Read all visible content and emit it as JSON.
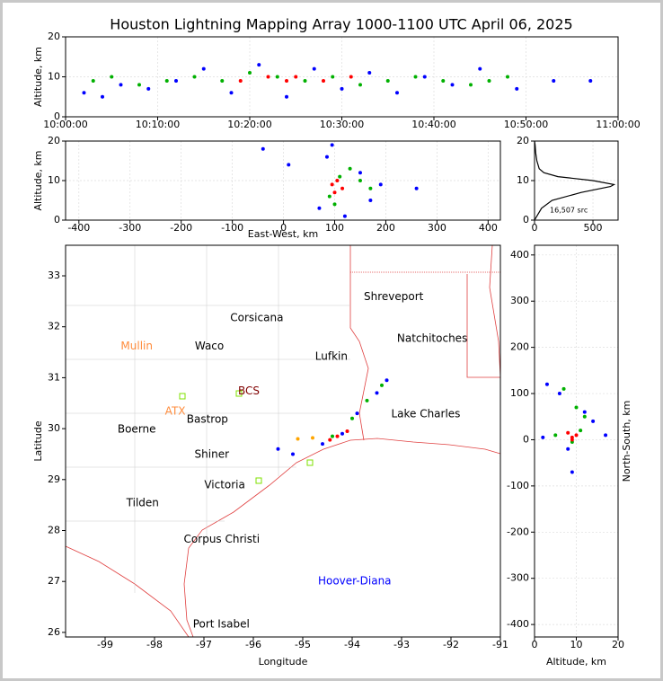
{
  "chart_data": [
    {
      "type": "scatter",
      "title": "Houston Lightning Mapping Array 1000-1100 UTC April 06, 2025",
      "y_label": "Altitude, km",
      "xlim": [
        0,
        60
      ],
      "xticks": [
        {
          "value": 0,
          "label": "10:00:00"
        },
        {
          "value": 10,
          "label": "10:10:00"
        },
        {
          "value": 20,
          "label": "10:20:00"
        },
        {
          "value": 30,
          "label": "10:30:00"
        },
        {
          "value": 40,
          "label": "10:40:00"
        },
        {
          "value": 50,
          "label": "10:50:00"
        },
        {
          "value": 60,
          "label": "11:00:00"
        }
      ],
      "ylim": [
        0,
        20
      ],
      "yticks": [
        0,
        10,
        20
      ],
      "grid": true,
      "groups": [
        {
          "color": "#0000ff",
          "x": [
            2,
            4,
            6,
            9,
            12,
            15,
            18,
            21,
            24,
            27,
            30,
            33,
            36,
            39,
            42,
            45,
            49,
            53,
            57
          ],
          "y": [
            6,
            5,
            8,
            7,
            9,
            12,
            6,
            13,
            5,
            12,
            7,
            11,
            6,
            10,
            8,
            12,
            7,
            9,
            9
          ]
        },
        {
          "color": "#00b000",
          "x": [
            3,
            5,
            8,
            11,
            14,
            17,
            20,
            23,
            26,
            29,
            32,
            35,
            38,
            41,
            44,
            46,
            48
          ],
          "y": [
            9,
            10,
            8,
            9,
            10,
            9,
            11,
            10,
            9,
            10,
            8,
            9,
            10,
            9,
            8,
            9,
            10
          ]
        },
        {
          "color": "#ff0000",
          "x": [
            19,
            22,
            24,
            25,
            28,
            31
          ],
          "y": [
            9,
            10,
            9,
            10,
            9,
            10
          ]
        }
      ]
    },
    {
      "type": "scatter",
      "x_label": "East-West, km",
      "y_label": "Altitude, km",
      "xlim": [
        -426,
        424
      ],
      "xticks": [
        -400,
        -300,
        -200,
        -100,
        0,
        100,
        200,
        300,
        400
      ],
      "ylim": [
        0,
        20
      ],
      "yticks": [
        0,
        10,
        20
      ],
      "grid": true,
      "groups": [
        {
          "color": "#0000ff",
          "x": [
            -40,
            10,
            70,
            85,
            150,
            190,
            170,
            120,
            95,
            260
          ],
          "y": [
            18,
            14,
            3,
            16,
            12,
            9,
            5,
            1,
            19,
            8
          ]
        },
        {
          "color": "#00b000",
          "x": [
            90,
            110,
            130,
            150,
            170,
            100
          ],
          "y": [
            6,
            11,
            13,
            10,
            8,
            4
          ]
        },
        {
          "color": "#ff0000",
          "x": [
            95,
            105,
            115,
            100
          ],
          "y": [
            9,
            10,
            8,
            7
          ]
        }
      ]
    },
    {
      "type": "line",
      "annotation": "16,507 src",
      "xlim": [
        0,
        715
      ],
      "xticks": [
        0,
        500
      ],
      "ylim": [
        0,
        20
      ],
      "yticks": [
        0,
        10,
        20
      ],
      "grid": true,
      "color": "#000000",
      "x": [
        0,
        20,
        60,
        150,
        400,
        650,
        680,
        500,
        200,
        80,
        40,
        20,
        10,
        5,
        0
      ],
      "values": [
        0,
        1,
        3,
        5,
        7,
        8.5,
        9,
        10,
        11,
        12,
        13,
        15,
        17,
        19,
        20
      ]
    },
    {
      "type": "map",
      "x_label": "Longitude",
      "y_label": "Latitude",
      "xlim": [
        -99.8,
        -91
      ],
      "xticks": [
        -99,
        -98,
        -97,
        -96,
        -95,
        -94,
        -93,
        -92,
        -91
      ],
      "ylim": [
        25.91,
        33.6
      ],
      "yticks": [
        26,
        27,
        28,
        29,
        30,
        31,
        32,
        33
      ],
      "cities": [
        {
          "name": "Shreveport",
          "lon": -93.16,
          "lat": 32.59,
          "color": "#000000"
        },
        {
          "name": "Corsicana",
          "lon": -95.93,
          "lat": 32.17,
          "color": "#000000"
        },
        {
          "name": "Natchitoches",
          "lon": -92.38,
          "lat": 31.77,
          "color": "#000000"
        },
        {
          "name": "Mullin",
          "lon": -98.36,
          "lat": 31.62,
          "color": "#ff8c3c"
        },
        {
          "name": "Waco",
          "lon": -96.89,
          "lat": 31.62,
          "color": "#000000"
        },
        {
          "name": "Lufkin",
          "lon": -94.42,
          "lat": 31.41,
          "color": "#000000"
        },
        {
          "name": "BCS",
          "lon": -96.09,
          "lat": 30.73,
          "color": "#800000"
        },
        {
          "name": "ATX",
          "lon": -97.58,
          "lat": 30.34,
          "color": "#ff8c3c"
        },
        {
          "name": "Bastrop",
          "lon": -96.93,
          "lat": 30.18,
          "color": "#000000"
        },
        {
          "name": "Lake Charles",
          "lon": -92.51,
          "lat": 30.28,
          "color": "#000000"
        },
        {
          "name": "Boerne",
          "lon": -98.36,
          "lat": 29.98,
          "color": "#000000"
        },
        {
          "name": "Shiner",
          "lon": -96.84,
          "lat": 29.49,
          "color": "#000000"
        },
        {
          "name": "Victoria",
          "lon": -96.58,
          "lat": 28.89,
          "color": "#000000"
        },
        {
          "name": "Tilden",
          "lon": -98.24,
          "lat": 28.54,
          "color": "#000000"
        },
        {
          "name": "Corpus Christi",
          "lon": -96.64,
          "lat": 27.82,
          "color": "#000000"
        },
        {
          "name": "Hoover-Diana",
          "lon": -93.95,
          "lat": 27.0,
          "color": "#0000ff"
        },
        {
          "name": "Port Isabel",
          "lon": -96.65,
          "lat": 26.16,
          "color": "#000000"
        }
      ],
      "groups": [
        {
          "color": "#0000ff",
          "x": [
            -94.6,
            -94.2,
            -93.9,
            -93.5,
            -93.3,
            -95.2,
            -95.5
          ],
          "y": [
            29.7,
            29.9,
            30.3,
            30.7,
            30.95,
            29.5,
            29.6
          ]
        },
        {
          "color": "#00b000",
          "x": [
            -94.4,
            -94.0,
            -93.7,
            -93.4
          ],
          "y": [
            29.85,
            30.2,
            30.55,
            30.85
          ]
        },
        {
          "color": "#ff0000",
          "x": [
            -94.45,
            -94.3,
            -94.1
          ],
          "y": [
            29.78,
            29.85,
            29.95
          ]
        },
        {
          "color": "#ffa500",
          "x": [
            -95.1,
            -94.8
          ],
          "y": [
            29.8,
            29.82
          ]
        }
      ]
    },
    {
      "type": "scatter",
      "x_label": "Altitude, km",
      "y_label": "North-South, km",
      "xlim": [
        0,
        20
      ],
      "xticks": [
        0,
        10,
        20
      ],
      "ylim": [
        -427,
        421
      ],
      "yticks": [
        -400,
        -300,
        -200,
        -100,
        0,
        100,
        200,
        300,
        400
      ],
      "grid": true,
      "groups": [
        {
          "color": "#0000ff",
          "x": [
            3,
            6,
            12,
            14,
            8,
            2,
            17,
            9
          ],
          "y": [
            120,
            100,
            60,
            40,
            -20,
            5,
            10,
            -70
          ]
        },
        {
          "color": "#00b000",
          "x": [
            7,
            10,
            12,
            5,
            9,
            11
          ],
          "y": [
            110,
            70,
            50,
            10,
            -5,
            20
          ]
        },
        {
          "color": "#ff0000",
          "x": [
            8,
            9,
            10,
            9
          ],
          "y": [
            15,
            0,
            10,
            5
          ]
        }
      ]
    }
  ]
}
